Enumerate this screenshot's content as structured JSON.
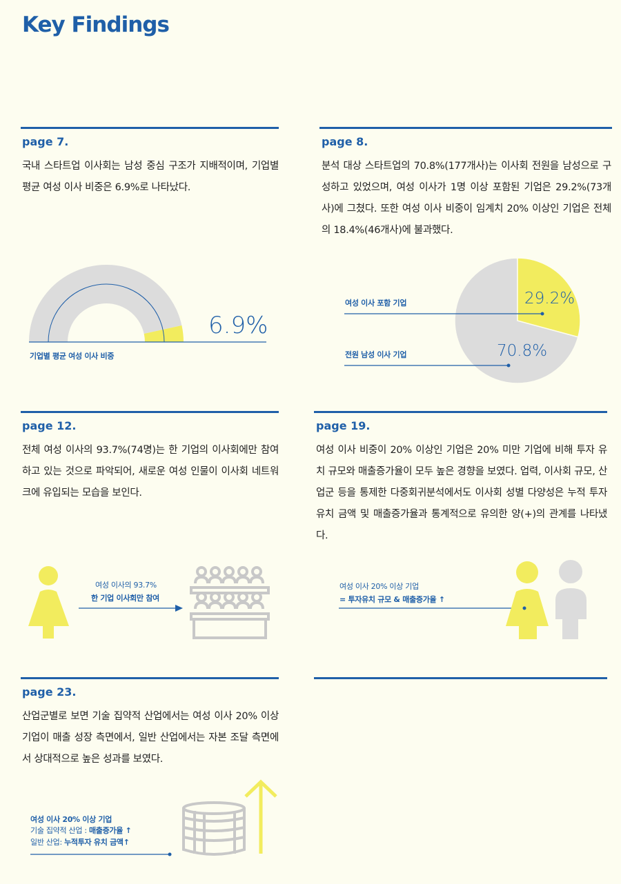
{
  "title": "Key Findings",
  "sections": [
    {
      "page": "page 7.",
      "text": "국내 스타트업 이사회는 남성 중심 구조가 지배적이며, 기업별 평균 여성 이사 비중은 6.9%로 나타났다.",
      "figure": {
        "label": "기업별 평균 여성 이사 비중",
        "value_text": "6.9%",
        "value": 6.9
      }
    },
    {
      "page": "page 8.",
      "text": "분석 대상 스타트업의 70.8%(177개사)는 이사회 전원을 남성으로 구성하고 있었으며, 여성 이사가 1명 이상 포함된 기업은 29.2%(73개사)에 그쳤다. 또한 여성 이사 비중이 임계치 20% 이상인 기업은 전체의 18.4%(46개사)에 불과했다.",
      "figure": {
        "slices": [
          {
            "label": "여성 이사 포함 기업",
            "value_text": "29.2%",
            "value": 29.2,
            "color": "#f2ec5e"
          },
          {
            "label": "전원 남성 이사 기업",
            "value_text": "70.8%",
            "value": 70.8,
            "color": "#dcdcdc"
          }
        ]
      }
    },
    {
      "page": "page 12.",
      "text": "전체 여성 이사의 93.7%(74명)는 한 기업의 이사회에만 참여하고 있는 것으로 파악되어, 새로운 여성 인물이 이사회 네트워크에 유입되는 모습을 보인다.",
      "figure": {
        "line1": "여성 이사의 93.7%",
        "line2": "한 기업 이사회만 참여"
      }
    },
    {
      "page": "page 19.",
      "text": "여성 이사 비중이 20% 이상인 기업은 20% 미만 기업에 비해 투자 유치 규모와 매출증가율이 모두 높은 경향을 보였다. 업력, 이사회 규모, 산업군 등을 통제한 다중회귀분석에서도 이사회 성별 다양성은 누적 투자 유치 금액 및 매출증가율과 통계적으로 유의한 양(+)의 관계를 나타냈다.",
      "figure": {
        "line1": "여성 이사 20% 이상 기업",
        "line2": "= 투자유치 규모 & 매출증가율 ↑"
      }
    },
    {
      "page": "page 23.",
      "text": "산업군별로 보면 기술 집약적 산업에서는 여성 이사 20% 이상 기업이 매출 성장 측면에서, 일반 산업에서는 자본 조달 측면에서 상대적으로 높은 성과를 보였다.",
      "figure": {
        "line1": "여성 이사 20% 이상 기업",
        "line2a": "기술 집약적 산업 : ",
        "line2b": "매출증가율 ↑",
        "line3a": "일반 산업: ",
        "line3b": "누적투자 유치 금액↑"
      }
    }
  ],
  "colors": {
    "blue": "#1f5fa8",
    "yellow": "#f2ec5e",
    "gray": "#dcdcdc",
    "background": "#fdfdf0"
  }
}
